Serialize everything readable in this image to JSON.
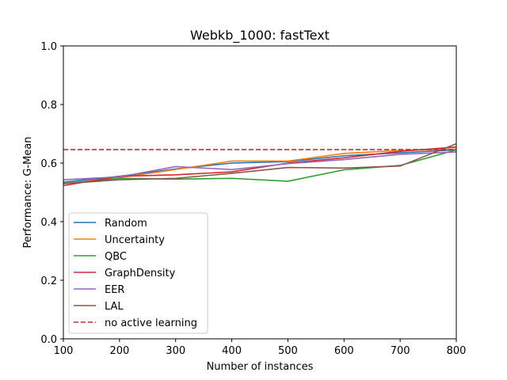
{
  "chart_data": {
    "type": "line",
    "title": "Webkb_1000: fastText",
    "xlabel": "Number of instances",
    "ylabel": "Performance: G-Mean",
    "xlim": [
      100,
      800
    ],
    "ylim": [
      0.0,
      1.0
    ],
    "xticks": [
      "100",
      "200",
      "300",
      "400",
      "500",
      "600",
      "700",
      "800"
    ],
    "yticks": [
      "0.0",
      "0.2",
      "0.4",
      "0.6",
      "0.8",
      "1.0"
    ],
    "grid": false,
    "legend_position": "lower-left",
    "x": [
      100,
      200,
      300,
      400,
      500,
      600,
      700,
      800
    ],
    "series": [
      {
        "name": "Random",
        "color": "#1f77b4",
        "style": "solid",
        "values": [
          0.535,
          0.555,
          0.58,
          0.6,
          0.605,
          0.625,
          0.635,
          0.645
        ]
      },
      {
        "name": "Uncertainty",
        "color": "#ff7f0e",
        "style": "solid",
        "values": [
          0.53,
          0.55,
          0.578,
          0.607,
          0.607,
          0.633,
          0.643,
          0.648
        ]
      },
      {
        "name": "QBC",
        "color": "#2ca02c",
        "style": "solid",
        "values": [
          0.53,
          0.548,
          0.545,
          0.548,
          0.538,
          0.577,
          0.592,
          0.645
        ]
      },
      {
        "name": "GraphDensity",
        "color": "#d62728",
        "style": "solid",
        "values": [
          0.523,
          0.555,
          0.56,
          0.57,
          0.6,
          0.618,
          0.64,
          0.655
        ]
      },
      {
        "name": "EER",
        "color": "#9467bd",
        "style": "solid",
        "values": [
          0.543,
          0.553,
          0.588,
          0.578,
          0.598,
          0.612,
          0.63,
          0.638
        ]
      },
      {
        "name": "LAL",
        "color": "#8c564b",
        "style": "solid",
        "values": [
          0.53,
          0.543,
          0.548,
          0.565,
          0.585,
          0.583,
          0.59,
          0.666
        ]
      },
      {
        "name": "no active learning",
        "color": "#d62728",
        "style": "dashed",
        "values": [
          0.646,
          0.646,
          0.646,
          0.646,
          0.646,
          0.646,
          0.646,
          0.646
        ]
      }
    ]
  }
}
